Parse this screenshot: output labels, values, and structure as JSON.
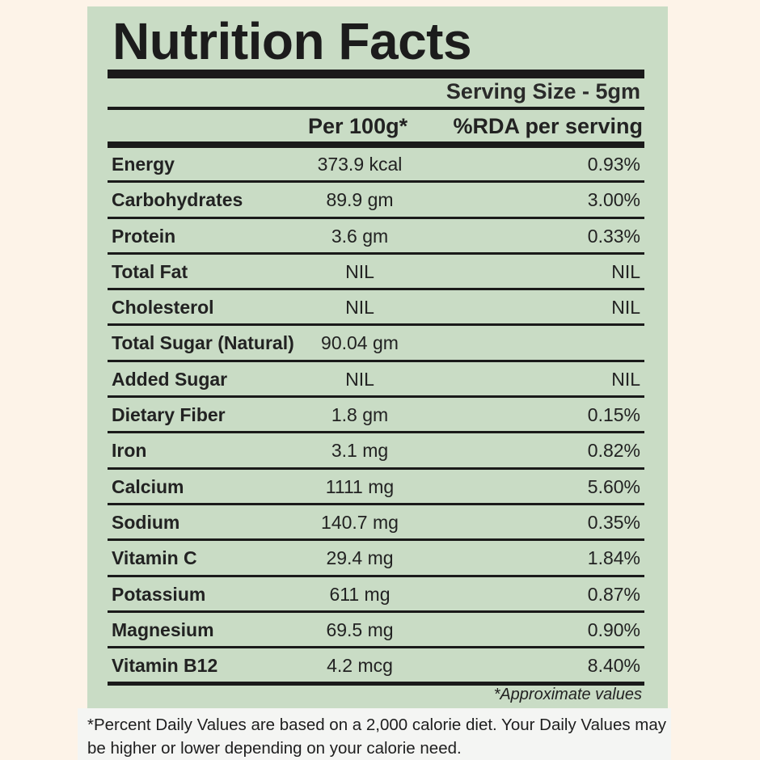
{
  "title": "Nutrition Facts",
  "serving_size": "Serving Size - 5gm",
  "columns": {
    "per100": "Per 100g*",
    "rda": "%RDA per serving"
  },
  "rows": [
    {
      "label": "Energy",
      "per100": "373.9 kcal",
      "rda": "0.93%"
    },
    {
      "label": "Carbohydrates",
      "per100": "89.9 gm",
      "rda": "3.00%"
    },
    {
      "label": "Protein",
      "per100": "3.6 gm",
      "rda": "0.33%"
    },
    {
      "label": "Total Fat",
      "per100": "NIL",
      "rda": "NIL"
    },
    {
      "label": "Cholesterol",
      "per100": "NIL",
      "rda": "NIL"
    },
    {
      "label": "Total Sugar (Natural)",
      "per100": "90.04 gm",
      "rda": ""
    },
    {
      "label": "Added Sugar",
      "per100": "NIL",
      "rda": "NIL"
    },
    {
      "label": "Dietary Fiber",
      "per100": "1.8 gm",
      "rda": "0.15%"
    },
    {
      "label": "Iron",
      "per100": "3.1 mg",
      "rda": "0.82%"
    },
    {
      "label": "Calcium",
      "per100": "1111 mg",
      "rda": "5.60%"
    },
    {
      "label": "Sodium",
      "per100": "140.7 mg",
      "rda": "0.35%"
    },
    {
      "label": "Vitamin C",
      "per100": "29.4 mg",
      "rda": "1.84%"
    },
    {
      "label": "Potassium",
      "per100": "611 mg",
      "rda": "0.87%"
    },
    {
      "label": "Magnesium",
      "per100": "69.5 mg",
      "rda": "0.90%"
    },
    {
      "label": "Vitamin B12",
      "per100": "4.2 mcg",
      "rda": "8.40%"
    }
  ],
  "approx_note": "*Approximate values",
  "footnote": "*Percent Daily Values are based on a 2,000 calorie diet. Your Daily Values may be higher or lower depending on your calorie need.",
  "colors": {
    "panel": "#c9dcc5",
    "background": "#fdf3e8",
    "ink": "#1a1a1a"
  }
}
